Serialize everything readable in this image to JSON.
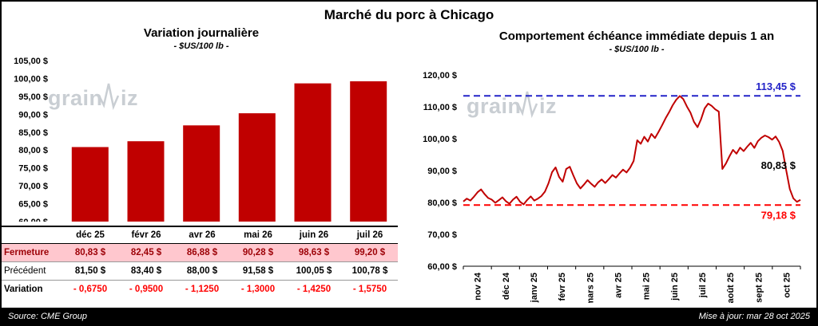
{
  "page_title": "Marché du porc à Chicago",
  "watermark_text": {
    "pre": "grain",
    "post": "iz"
  },
  "footer": {
    "source": "Source: CME Group",
    "updated": "Mise à jour: mar 28 oct 2025"
  },
  "left_panel": {
    "title": "Variation journalière",
    "subtitle": "- $US/100 lb -",
    "table": {
      "rows": [
        {
          "label": "Fermeture",
          "style": "fermeture",
          "values": [
            "80,83  $",
            "82,45  $",
            "86,88  $",
            "90,28  $",
            "98,63  $",
            "99,20  $"
          ]
        },
        {
          "label": "Précédent",
          "style": "precedent",
          "values": [
            "81,50  $",
            "83,40  $",
            "88,00  $",
            "91,58  $",
            "100,05  $",
            "100,78  $"
          ]
        },
        {
          "label": "Variation",
          "style": "variation",
          "values": [
            "- 0,6750",
            "- 0,9500",
            "- 1,1250",
            "- 1,3000",
            "- 1,4250",
            "- 1,5750"
          ]
        }
      ]
    }
  },
  "right_panel": {
    "title": "Comportement échéance immédiate depuis 1 an",
    "subtitle": "- $US/100 lb -"
  },
  "chart_data": [
    {
      "type": "bar",
      "title": "Variation journalière",
      "unit": "$US/100 lb",
      "categories": [
        "déc 25",
        "févr 26",
        "avr 26",
        "mai 26",
        "juin 26",
        "juil 26"
      ],
      "values": [
        80.83,
        82.45,
        86.88,
        90.28,
        98.63,
        99.2
      ],
      "ylim": [
        60,
        105
      ],
      "ytick_step": 5,
      "bar_color": "#C00000",
      "grid": false,
      "legend": false
    },
    {
      "type": "line",
      "title": "Comportement échéance immédiate depuis 1 an",
      "unit": "$US/100 lb",
      "x_labels": [
        "nov 24",
        "déc 24",
        "janv 25",
        "févr 25",
        "mars 25",
        "avr 25",
        "mai 25",
        "juin 25",
        "juil 25",
        "août 25",
        "sept 25",
        "oct 25"
      ],
      "ylim": [
        60,
        120
      ],
      "ytick_step": 10,
      "line_color": "#C00000",
      "grid": false,
      "legend": false,
      "annotations": {
        "max": {
          "value": 113.45,
          "label": "113,45 $",
          "color": "#2323C8",
          "style": "dashed"
        },
        "last": {
          "value": 80.83,
          "label": "80,83 $",
          "color": "#000000"
        },
        "min": {
          "value": 79.18,
          "label": "79,18 $",
          "color": "#FF0000",
          "style": "dashed"
        }
      },
      "points": [
        80.3,
        81.2,
        80.6,
        81.8,
        83.2,
        84.1,
        82.6,
        81.4,
        80.9,
        79.9,
        80.7,
        81.6,
        80.4,
        79.6,
        80.9,
        81.8,
        80.2,
        79.4,
        80.8,
        81.9,
        80.6,
        81.2,
        82.0,
        83.4,
        86.0,
        89.5,
        91.0,
        88.0,
        86.5,
        90.5,
        91.2,
        88.5,
        86.0,
        84.4,
        85.6,
        87.0,
        85.9,
        84.9,
        86.3,
        87.2,
        86.1,
        87.3,
        88.6,
        87.8,
        89.1,
        90.3,
        89.4,
        90.9,
        93.0,
        99.5,
        98.4,
        100.6,
        99.1,
        101.5,
        100.2,
        102.1,
        104.2,
        106.4,
        108.3,
        110.5,
        112.2,
        113.4,
        112.4,
        110.1,
        108.2,
        105.3,
        103.6,
        106.1,
        109.5,
        111.0,
        110.3,
        109.2,
        108.5,
        90.5,
        92.2,
        94.5,
        96.5,
        95.3,
        97.2,
        96.1,
        97.5,
        98.7,
        97.1,
        99.2,
        100.3,
        101.0,
        100.5,
        99.7,
        100.7,
        99.0,
        96.2,
        90.1,
        84.2,
        81.3,
        80.2,
        80.83
      ]
    }
  ]
}
